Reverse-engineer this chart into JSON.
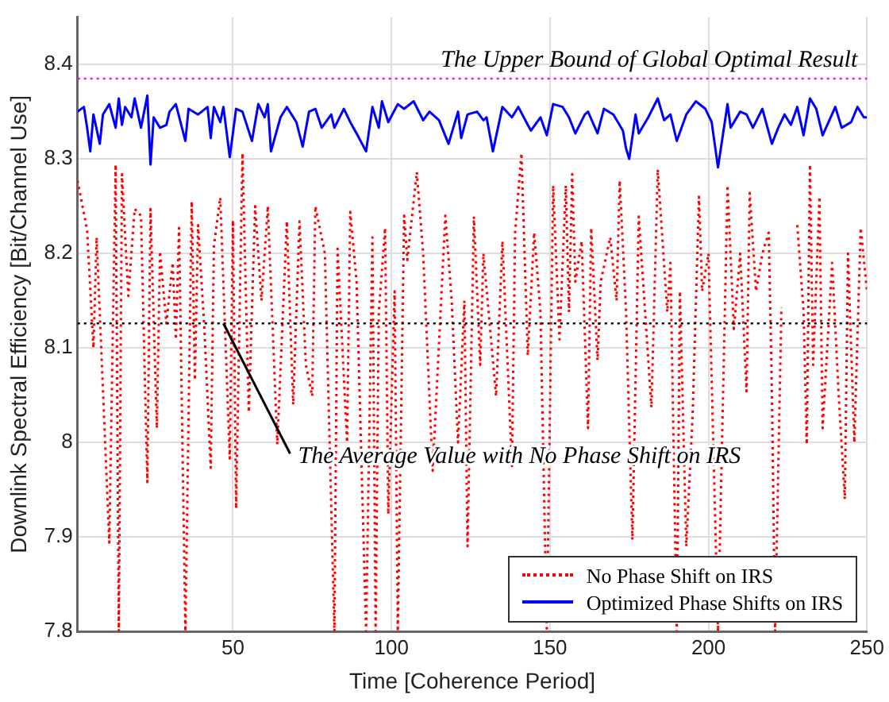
{
  "chart_data": {
    "type": "line",
    "xlabel": "Time [Coherence Period]",
    "ylabel": "Downlink Spectral Efficiency [Bit/Channel Use]",
    "xlim": [
      1,
      250
    ],
    "xticks": [
      50,
      100,
      150,
      200,
      250
    ],
    "ylim": [
      7.8,
      8.45
    ],
    "yticks": [
      7.8,
      7.9,
      8,
      8.1,
      8.2,
      8.3,
      8.4
    ],
    "grid": true,
    "legend": "bottom right",
    "marker": "none",
    "series": [
      {
        "name": "No Phase Shift on IRS",
        "color": "#ff0000",
        "line_style": "dotted",
        "x": [
          1,
          4,
          6,
          7,
          11,
          13,
          14,
          15,
          17,
          19,
          21,
          23,
          24,
          26,
          27,
          29,
          31,
          32,
          33,
          35,
          37,
          38,
          39,
          41,
          43,
          44,
          46,
          49,
          50,
          51,
          53,
          55,
          57,
          59,
          61,
          64,
          67,
          69,
          71,
          73,
          75,
          76,
          79,
          82,
          83,
          86,
          87,
          89,
          92,
          94,
          95,
          96,
          98,
          99,
          101,
          102,
          104,
          105,
          108,
          110,
          113,
          117,
          119,
          121,
          123,
          124,
          126,
          128,
          129,
          133,
          135,
          138,
          139,
          141,
          143,
          145,
          147,
          149,
          151,
          153,
          155,
          156,
          157,
          158,
          160,
          162,
          163,
          165,
          166,
          169,
          171,
          172,
          174,
          176,
          178,
          180,
          182,
          184,
          187,
          188,
          190,
          191,
          193,
          195,
          197,
          198,
          200,
          203,
          206,
          208,
          210,
          212,
          213,
          215,
          217,
          219,
          220,
          221,
          223,
          226,
          228,
          230,
          231,
          232,
          233,
          235,
          236,
          239,
          241,
          243,
          244,
          246,
          248,
          250
        ],
        "values": [
          8.277,
          8.225,
          8.1,
          8.217,
          7.894,
          8.294,
          7.8,
          8.284,
          8.155,
          8.247,
          8.24,
          7.958,
          8.247,
          8.015,
          8.202,
          8.126,
          8.19,
          8.109,
          8.227,
          7.8,
          8.255,
          8.066,
          8.23,
          8.12,
          7.973,
          8.208,
          8.259,
          7.983,
          8.235,
          7.93,
          8.306,
          8.032,
          8.25,
          8.15,
          8.25,
          7.998,
          8.234,
          8.04,
          8.234,
          8.082,
          8.049,
          8.25,
          8.2,
          7.8,
          8.205,
          8,
          8.244,
          8.17,
          7.8,
          8.217,
          7.8,
          8.138,
          8.227,
          7.924,
          8.16,
          7.8,
          8.24,
          8.193,
          8.286,
          8.2,
          7.97,
          8.24,
          8.15,
          8,
          8.15,
          7.89,
          8.239,
          8.082,
          8.2,
          8.049,
          8.213,
          7.975,
          8.222,
          8.306,
          8.092,
          8.222,
          8.138,
          7.8,
          8.272,
          8.109,
          8.272,
          8.138,
          8.284,
          8.17,
          8.213,
          8.015,
          8.227,
          8.087,
          8.17,
          8.217,
          8.15,
          8.277,
          8.138,
          7.897,
          8.239,
          8.138,
          8.037,
          8.289,
          8.138,
          8.19,
          7.8,
          8.16,
          7.89,
          8.03,
          8.26,
          8.16,
          8.2,
          7.8,
          8.272,
          8.12,
          8.2,
          8.054,
          8.264,
          8.16,
          8.2,
          8.222,
          8.054,
          7.8,
          8.143,
          null,
          8.23,
          8.138,
          7.998,
          8.294,
          8.082,
          8.26,
          8.015,
          8.19,
          8.054,
          7.94,
          8.2,
          8,
          8.227,
          8.16
        ]
      },
      {
        "name": "Optimized Phase Shifts on IRS",
        "color": "#0000ff",
        "line_style": "solid",
        "x": [
          1,
          3,
          4,
          5,
          6,
          8,
          9,
          11,
          13,
          14,
          15,
          16,
          18,
          19,
          21,
          23,
          24,
          25,
          27,
          29,
          30,
          32,
          35,
          36,
          39,
          42,
          43,
          44,
          46,
          47,
          49,
          51,
          53,
          56,
          58,
          60,
          61,
          62,
          65,
          67,
          70,
          72,
          74,
          76,
          78,
          81,
          82,
          85,
          87,
          89,
          92,
          94,
          96,
          97,
          99,
          102,
          104,
          107,
          110,
          112,
          115,
          118,
          121,
          122,
          124,
          127,
          129,
          130,
          132,
          135,
          138,
          140,
          143,
          144,
          147,
          149,
          151,
          154,
          156,
          158,
          161,
          162,
          165,
          167,
          170,
          173,
          174,
          175,
          177,
          178,
          181,
          184,
          186,
          188,
          190,
          193,
          196,
          199,
          201,
          203,
          206,
          207,
          210,
          212,
          214,
          217,
          220,
          222,
          224,
          226,
          228,
          230,
          232,
          234,
          236,
          240,
          242,
          245,
          247,
          249,
          250
        ],
        "values": [
          8.35,
          8.355,
          8.333,
          8.308,
          8.347,
          8.316,
          8.347,
          8.358,
          8.333,
          8.364,
          8.336,
          8.355,
          8.344,
          8.364,
          8.333,
          8.367,
          8.294,
          8.344,
          8.333,
          8.336,
          8.35,
          8.358,
          8.319,
          8.353,
          8.347,
          8.355,
          8.322,
          8.355,
          8.339,
          8.355,
          8.302,
          8.353,
          8.35,
          8.319,
          8.358,
          8.344,
          8.358,
          8.308,
          8.344,
          8.355,
          8.339,
          8.313,
          8.35,
          8.353,
          8.333,
          8.347,
          8.333,
          8.353,
          8.339,
          8.327,
          8.308,
          8.355,
          8.333,
          8.361,
          8.339,
          8.358,
          8.353,
          8.361,
          8.341,
          8.35,
          8.341,
          8.316,
          8.35,
          8.322,
          8.347,
          8.35,
          8.341,
          8.344,
          8.308,
          8.355,
          8.344,
          8.355,
          8.336,
          8.33,
          8.344,
          8.325,
          8.358,
          8.355,
          8.344,
          8.327,
          8.347,
          8.35,
          8.327,
          8.353,
          8.347,
          8.33,
          8.311,
          8.3,
          8.347,
          8.327,
          8.344,
          8.364,
          8.341,
          8.347,
          8.319,
          8.347,
          8.361,
          8.353,
          8.339,
          8.291,
          8.358,
          8.333,
          8.35,
          8.347,
          8.333,
          8.353,
          8.316,
          8.333,
          8.347,
          8.336,
          8.355,
          8.325,
          8.364,
          8.353,
          8.325,
          8.355,
          8.333,
          8.339,
          8.355,
          8.344,
          8.344
        ]
      }
    ],
    "ref_lines": [
      {
        "axis": "y",
        "value": 8.385,
        "label": "The Upper Bound of Global Optimal Result",
        "color": "#ff00ff",
        "line_style": "dotted"
      },
      {
        "axis": "y",
        "value": 8.126,
        "color": "#000000",
        "line_style": "dotted"
      }
    ],
    "annotations": [
      {
        "text": "The Average Value with No Phase Shift on IRS",
        "x": 47,
        "y": 8.126
      }
    ]
  }
}
